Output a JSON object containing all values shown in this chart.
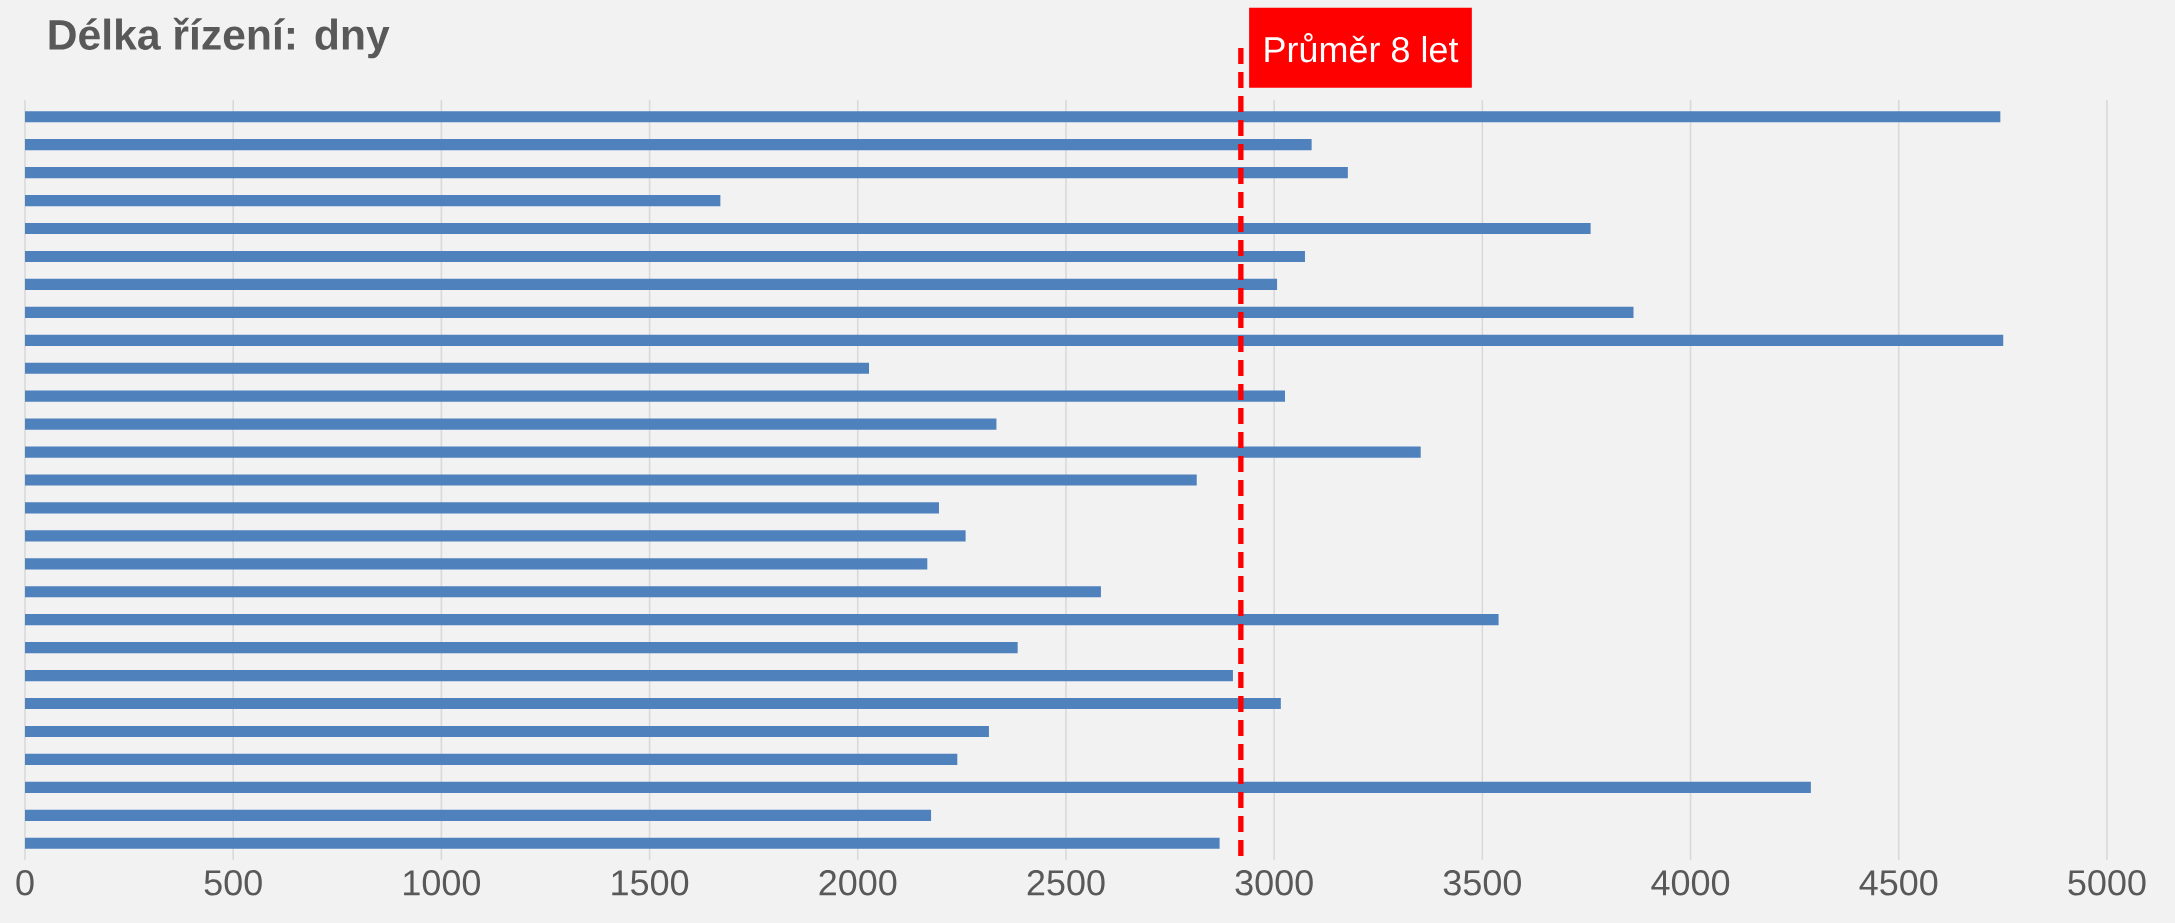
{
  "chart_data": {
    "type": "bar",
    "orientation": "horizontal",
    "title": "Délka řízení: dny",
    "categories": [
      null,
      null,
      null,
      null,
      null,
      null,
      null,
      null,
      null,
      null,
      null,
      null,
      null,
      null,
      null,
      null,
      null,
      null,
      null,
      null,
      null,
      null,
      null,
      null,
      null,
      null,
      null
    ],
    "values": [
      4744,
      3090,
      3177,
      1670,
      3760,
      3074,
      3007,
      3863,
      4751,
      2027,
      3026,
      2333,
      3352,
      2814,
      2195,
      2259,
      2167,
      2584,
      3539,
      2384,
      2901,
      3016,
      2315,
      2239,
      4289,
      2176,
      2869
    ],
    "color": "#4f81bd",
    "xlim": [
      0,
      5000
    ],
    "xticks": [
      0,
      500,
      1000,
      1500,
      2000,
      2500,
      3000,
      3500,
      4000,
      4500,
      5000
    ],
    "grid": "x",
    "tick_labels": "x",
    "ref_lines": [
      {
        "axis": "x",
        "value": 2920,
        "label": "Průměr 8 let",
        "color": "#ff0000",
        "line_style": "dashed"
      }
    ]
  }
}
